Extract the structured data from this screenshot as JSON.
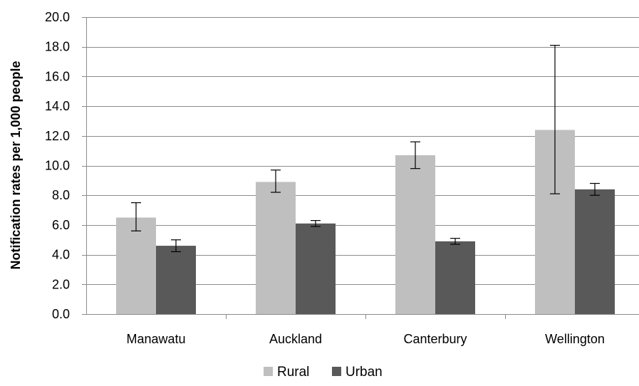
{
  "chart_data": {
    "type": "bar",
    "categories": [
      "Manawatu",
      "Auckland",
      "Canterbury",
      "Wellington"
    ],
    "series": [
      {
        "name": "Rural",
        "color": "#bfbfbf",
        "values": [
          6.5,
          8.9,
          10.7,
          12.4
        ],
        "error_low": [
          5.6,
          8.2,
          9.8,
          8.1
        ],
        "error_high": [
          7.5,
          9.7,
          11.6,
          18.1
        ]
      },
      {
        "name": "Urban",
        "color": "#595959",
        "values": [
          4.6,
          6.1,
          4.9,
          8.4
        ],
        "error_low": [
          4.2,
          5.9,
          4.7,
          8.0
        ],
        "error_high": [
          5.0,
          6.3,
          5.1,
          8.8
        ]
      }
    ],
    "title": "",
    "xlabel": "",
    "ylabel": "Notification rates per 1,000 people",
    "ylim": [
      0,
      20
    ],
    "yticks": [
      "0.0",
      "2.0",
      "4.0",
      "6.0",
      "8.0",
      "10.0",
      "12.0",
      "14.0",
      "16.0",
      "18.0",
      "20.0"
    ],
    "grid": true,
    "legend_position": "bottom"
  }
}
